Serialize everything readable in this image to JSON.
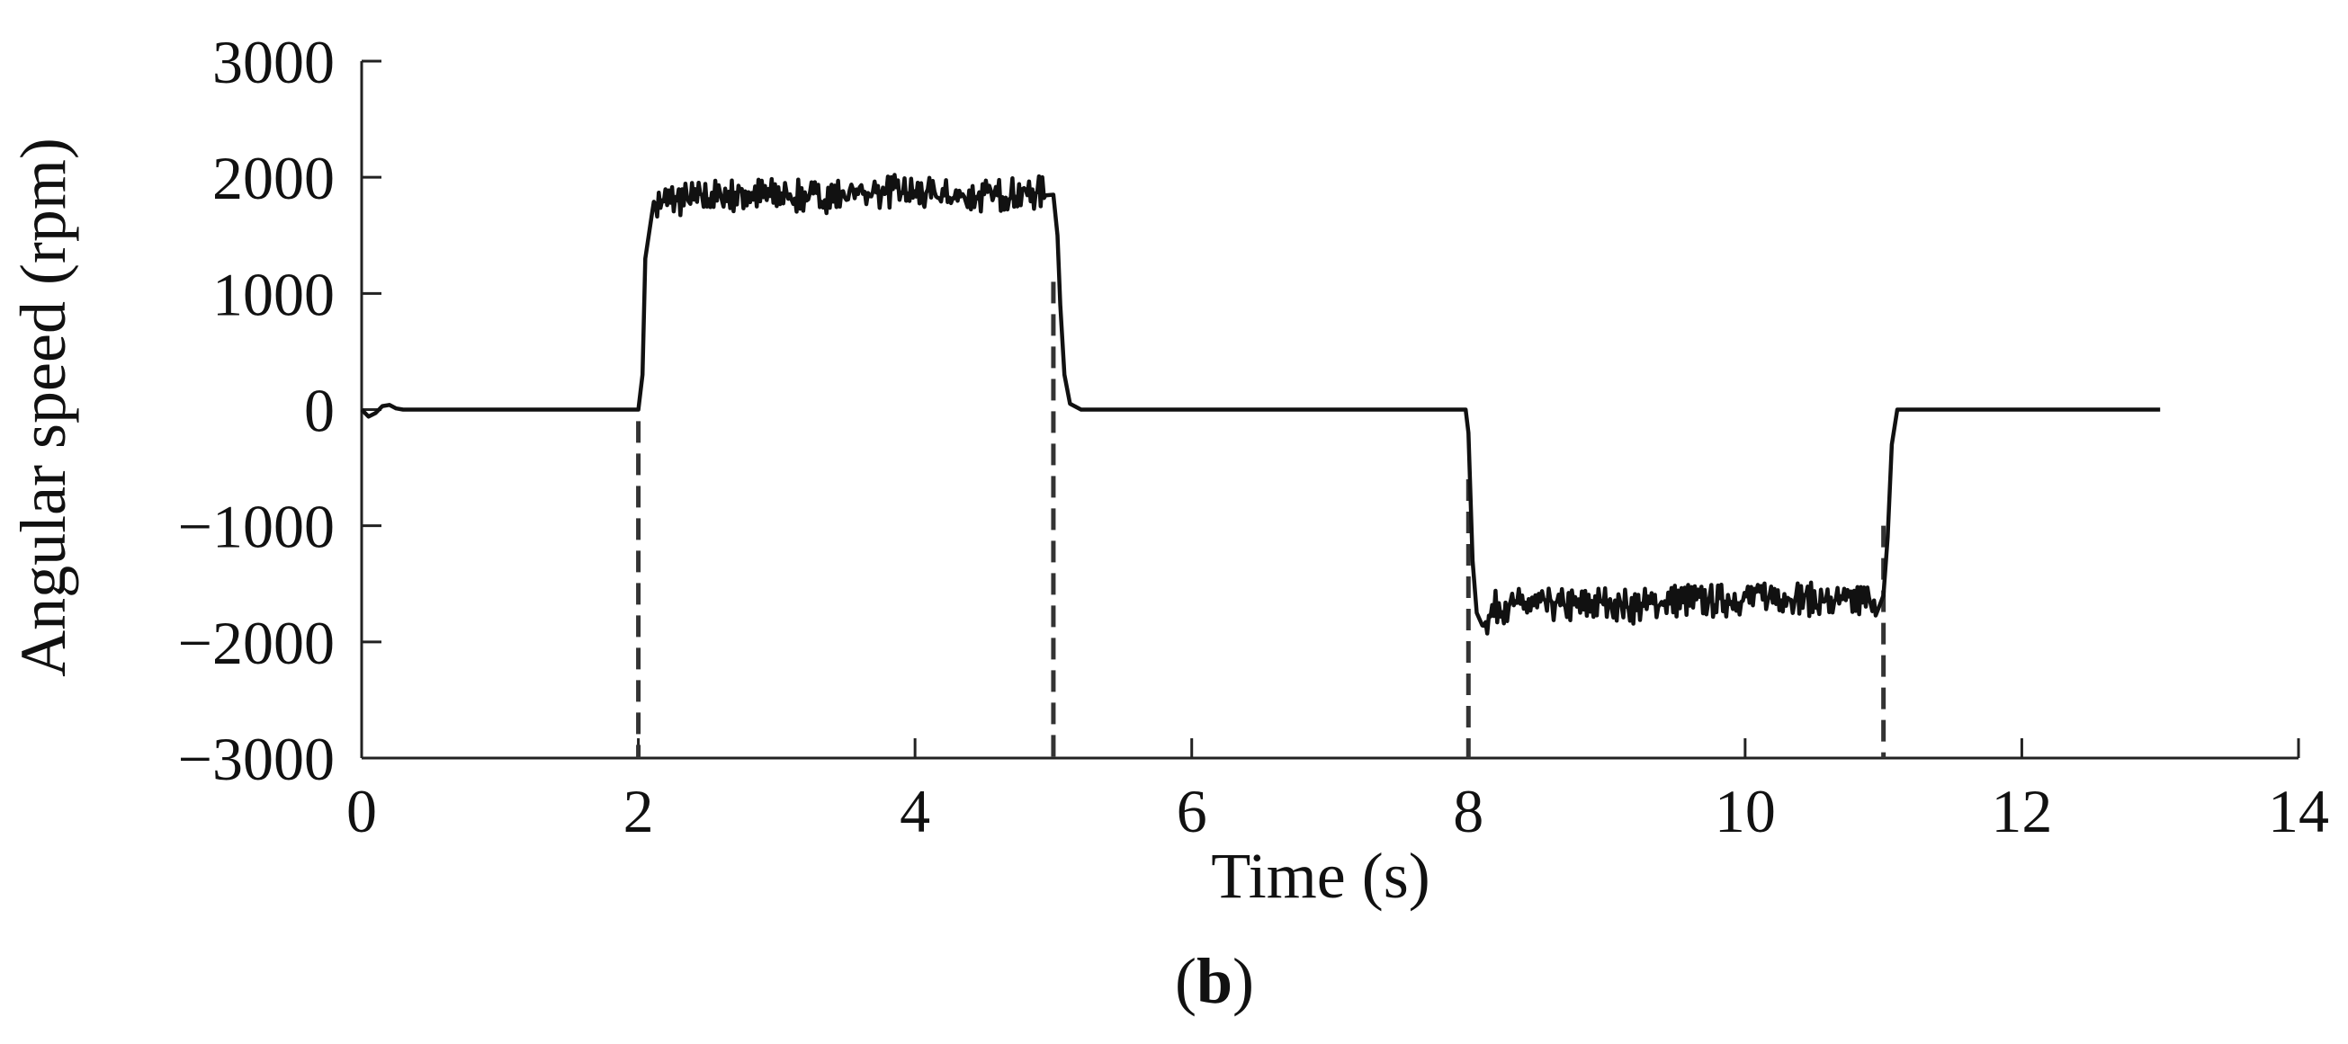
{
  "chart_data": {
    "type": "line",
    "title": "",
    "xlabel": "Time (s)",
    "ylabel": "Angular speed (rpm)",
    "panel_label": "(b)",
    "xlim": [
      0,
      14
    ],
    "ylim": [
      -3000,
      3000
    ],
    "xticks": [
      0,
      2,
      4,
      6,
      8,
      10,
      12,
      14
    ],
    "yticks": [
      3000,
      2000,
      1000,
      0,
      -1000,
      -2000,
      -3000
    ],
    "ytick_labels": [
      "3000",
      "2000",
      "1000",
      "0",
      "−1000",
      "−2000",
      "−3000"
    ],
    "grid": false,
    "legend": "none",
    "line_color": "#111111",
    "marker_color": "#333333",
    "markers": [
      {
        "x": 2,
        "y_top": -100
      },
      {
        "x": 5,
        "y_top": 1100
      },
      {
        "x": 8,
        "y_top": -600
      },
      {
        "x": 11,
        "y_top": -1000
      }
    ],
    "series": [
      {
        "x": [
          0,
          0.05,
          0.1,
          0.15,
          0.2,
          0.25,
          0.3,
          2.0,
          2.03,
          2.05,
          2.1,
          2.2,
          2.4,
          2.6,
          2.8,
          3.0,
          3.2,
          3.4,
          3.6,
          3.8,
          4.0,
          4.2,
          4.4,
          4.6,
          4.8,
          4.95,
          5.0,
          5.03,
          5.05,
          5.08,
          5.12,
          5.2,
          7.98,
          8.0,
          8.03,
          8.06,
          8.1,
          8.2,
          8.4,
          8.6,
          8.8,
          9.0,
          9.2,
          9.4,
          9.6,
          9.8,
          10.0,
          10.2,
          10.4,
          10.6,
          10.8,
          10.95,
          11.0,
          11.03,
          11.06,
          11.1,
          13.0
        ],
        "y": [
          0,
          -60,
          -30,
          30,
          40,
          10,
          0,
          0,
          300,
          1300,
          1750,
          1800,
          1820,
          1840,
          1850,
          1850,
          1830,
          1840,
          1870,
          1880,
          1860,
          1840,
          1830,
          1850,
          1860,
          1870,
          1850,
          1500,
          900,
          300,
          50,
          0,
          0,
          -200,
          -1300,
          -1750,
          -1850,
          -1700,
          -1680,
          -1680,
          -1690,
          -1660,
          -1700,
          -1650,
          -1640,
          -1650,
          -1620,
          -1600,
          -1620,
          -1660,
          -1650,
          -1630,
          -1600,
          -1100,
          -300,
          0,
          0
        ],
        "noise_intervals": [
          [
            2.1,
            4.95,
            140
          ],
          [
            8.1,
            10.95,
            140
          ]
        ]
      }
    ]
  }
}
